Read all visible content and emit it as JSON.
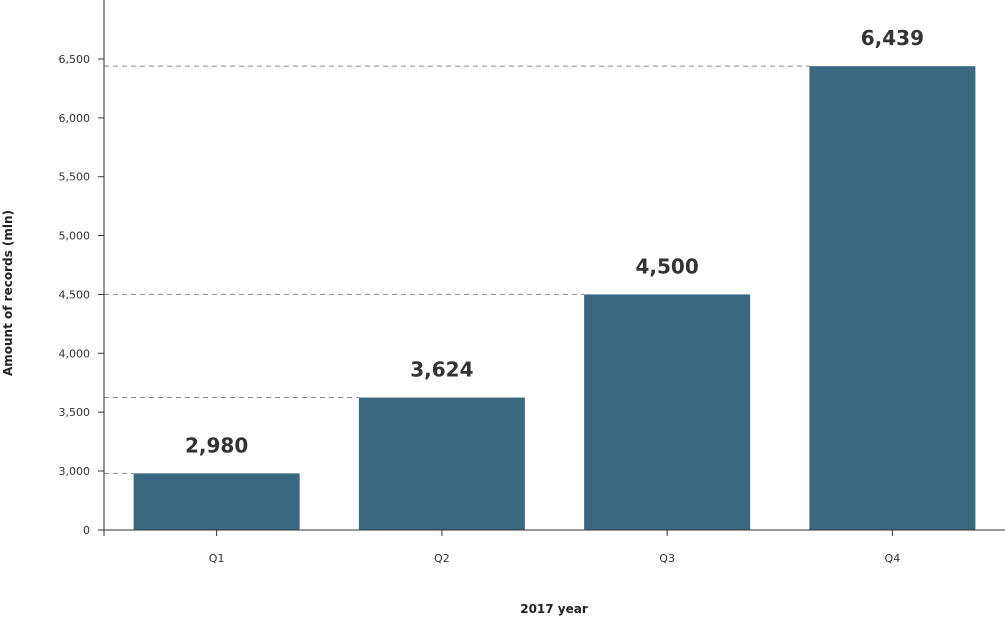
{
  "chart_data": {
    "type": "bar",
    "categories": [
      "Q1",
      "Q2",
      "Q3",
      "Q4"
    ],
    "values": [
      2980,
      3624,
      4500,
      6439
    ],
    "value_labels": [
      "2,980",
      "3,624",
      "4,500",
      "6,439"
    ],
    "xlabel": "2017 year",
    "ylabel": "Amount of records (mln)",
    "yticks": [
      0,
      3000,
      3500,
      4000,
      4500,
      5000,
      5500,
      6000,
      6500
    ],
    "ytick_labels": [
      "0",
      "3,000",
      "3,500",
      "4,000",
      "4,500",
      "5,000",
      "5,500",
      "6,000",
      "6,500"
    ],
    "axis_break": {
      "from": 0,
      "to": 2500
    },
    "ylim": [
      0,
      6800
    ],
    "grid": false,
    "reference_lines": "dashed lines from y-axis to top of each bar",
    "legend": "none",
    "bar_color": "#3a6880",
    "text_color": "#333333"
  }
}
